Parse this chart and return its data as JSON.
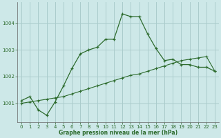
{
  "title": "Graphe pression niveau de la mer (hPa)",
  "background_color": "#cde8e8",
  "grid_color": "#aacccc",
  "line_color": "#2d6b2d",
  "xlim": [
    -0.5,
    23.5
  ],
  "ylim": [
    1000.3,
    1004.8
  ],
  "yticks": [
    1001,
    1002,
    1003,
    1004
  ],
  "xticks": [
    0,
    1,
    2,
    3,
    4,
    5,
    6,
    7,
    8,
    9,
    10,
    11,
    12,
    13,
    14,
    15,
    16,
    17,
    18,
    19,
    20,
    21,
    22,
    23
  ],
  "line1_x": [
    0,
    1,
    2,
    3,
    4,
    5,
    6,
    7,
    8,
    9,
    10,
    11,
    12,
    13,
    14,
    15,
    16,
    17,
    18,
    19,
    20,
    21,
    22,
    23
  ],
  "line1_y": [
    1001.1,
    1001.25,
    1000.75,
    1000.55,
    1001.05,
    1001.65,
    1002.3,
    1002.85,
    1003.0,
    1003.1,
    1003.4,
    1003.4,
    1004.35,
    1004.25,
    1004.25,
    1003.6,
    1003.05,
    1002.6,
    1002.65,
    1002.45,
    1002.45,
    1002.35,
    1002.35,
    1002.2
  ],
  "line2_x": [
    0,
    1,
    2,
    3,
    4,
    5,
    6,
    7,
    8,
    9,
    10,
    11,
    12,
    13,
    14,
    15,
    16,
    17,
    18,
    19,
    20,
    21,
    22,
    23
  ],
  "line2_y": [
    1001.0,
    1001.05,
    1001.1,
    1001.15,
    1001.2,
    1001.25,
    1001.35,
    1001.45,
    1001.55,
    1001.65,
    1001.75,
    1001.85,
    1001.95,
    1002.05,
    1002.1,
    1002.2,
    1002.3,
    1002.4,
    1002.5,
    1002.6,
    1002.65,
    1002.7,
    1002.75,
    1002.2
  ]
}
